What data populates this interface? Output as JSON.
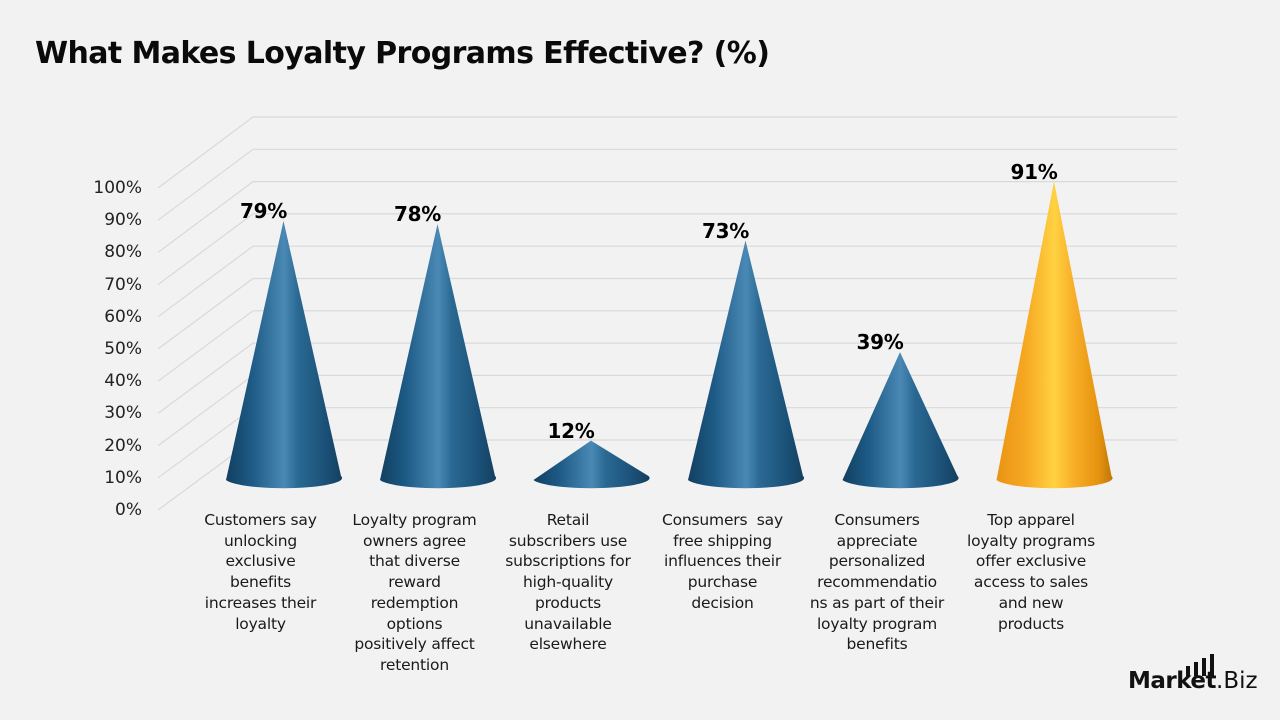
{
  "title": "What Makes Loyalty Programs Effective? (%)",
  "logo": {
    "part1": "Market",
    "part2": ".Biz"
  },
  "colors": {
    "background": "#f2f2f2",
    "cone_blue": "#1d5a85",
    "cone_blue_highlight": "#4a89b5",
    "cone_highlighted": "#f7a823",
    "gridline": "#d9d9d9"
  },
  "y_axis": {
    "ticks": [
      "0%",
      "10%",
      "20%",
      "30%",
      "40%",
      "50%",
      "60%",
      "70%",
      "80%",
      "90%",
      "100%"
    ]
  },
  "bars": [
    {
      "value_label": "79%",
      "label": "Customers say unlocking exclusive benefits increases their loyalty",
      "label_lines": [
        "Customers say",
        "unlocking",
        "exclusive",
        "benefits",
        "increases their",
        "loyalty"
      ]
    },
    {
      "value_label": "78%",
      "label": "Loyalty program owners agree that diverse reward redemption options positively affect retention",
      "label_lines": [
        "Loyalty program",
        "owners agree",
        "that diverse",
        "reward",
        "redemption",
        "options",
        "positively affect",
        "retention"
      ]
    },
    {
      "value_label": "12%",
      "label": "Retail subscribers use subscriptions for high-quality products unavailable elsewhere",
      "label_lines": [
        "Retail",
        "subscribers use",
        "subscriptions for",
        "high-quality",
        "products",
        "unavailable",
        "elsewhere"
      ]
    },
    {
      "value_label": "73%",
      "label": "Consumers say free shipping influences their purchase decision",
      "label_lines": [
        "Consumers  say",
        "free shipping",
        "influences their",
        "purchase",
        "decision"
      ]
    },
    {
      "value_label": "39%",
      "label": "Consumers appreciate personalized recommendations as part of their loyalty program benefits",
      "label_lines": [
        "Consumers",
        "appreciate",
        "personalized",
        "recommendatio",
        "ns as part of their",
        "loyalty program",
        "benefits"
      ]
    },
    {
      "value_label": "91%",
      "label": "Top apparel loyalty programs offer exclusive access to sales and new products",
      "label_lines": [
        "Top apparel",
        "loyalty programs",
        "offer exclusive",
        "access to sales",
        "and new",
        "products"
      ]
    }
  ],
  "chart_data": {
    "type": "bar",
    "subtype": "3d-cone",
    "title": "What Makes Loyalty Programs Effective? (%)",
    "xlabel": "",
    "ylabel": "",
    "ylim": [
      0,
      100
    ],
    "y_ticks": [
      0,
      10,
      20,
      30,
      40,
      50,
      60,
      70,
      80,
      90,
      100
    ],
    "y_tick_format": "percent",
    "grid": true,
    "legend": null,
    "categories": [
      "Customers say unlocking exclusive benefits increases their loyalty",
      "Loyalty program owners agree that diverse reward redemption options positively affect retention",
      "Retail subscribers use subscriptions for high-quality products unavailable elsewhere",
      "Consumers say free shipping influences their purchase decision",
      "Consumers appreciate personalized recommendations as part of their loyalty program benefits",
      "Top apparel loyalty programs offer exclusive access to sales and new products"
    ],
    "values": [
      79,
      78,
      12,
      73,
      39,
      91
    ],
    "data_labels": [
      "79%",
      "78%",
      "12%",
      "73%",
      "39%",
      "91%"
    ],
    "highlighted_index": 5,
    "bar_colors": [
      "#1d5a85",
      "#1d5a85",
      "#1d5a85",
      "#1d5a85",
      "#1d5a85",
      "#f7a823"
    ]
  }
}
